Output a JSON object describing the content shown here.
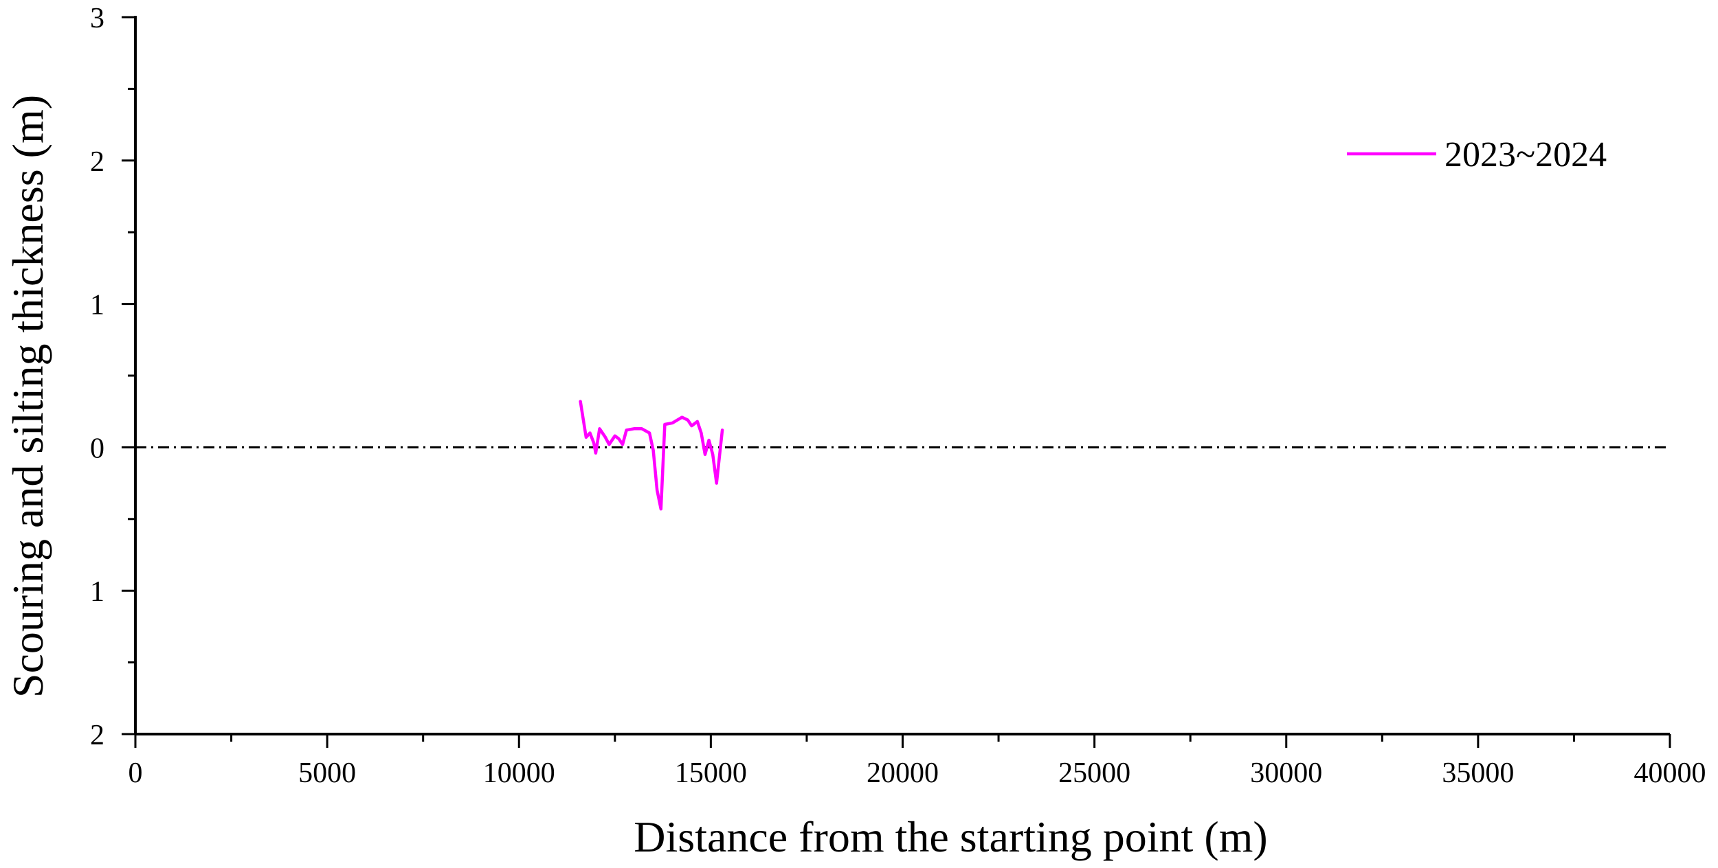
{
  "chart_data": {
    "type": "line",
    "title": "",
    "xlabel": "Distance from the starting point (m)",
    "ylabel": "Scouring and silting thickness (m)",
    "xlim": [
      0,
      40000
    ],
    "ylim": [
      -2,
      3
    ],
    "x_ticks": [
      0,
      5000,
      10000,
      15000,
      20000,
      25000,
      30000,
      35000,
      40000
    ],
    "x_tick_labels": [
      "0",
      "5000",
      "10000",
      "15000",
      "20000",
      "25000",
      "30000",
      "35000",
      "40000"
    ],
    "y_ticks": [
      3,
      2,
      1,
      0,
      -1,
      -2
    ],
    "y_tick_labels": [
      "3",
      "2",
      "1",
      "0",
      "1",
      "2"
    ],
    "grid": false,
    "legend_position": "top-right",
    "reference_line": {
      "y": 0,
      "style": "dash-dot",
      "color": "#000000"
    },
    "series": [
      {
        "name": "2023~2024",
        "color": "#ff00ff",
        "x": [
          11600,
          11750,
          11850,
          11950,
          12000,
          12100,
          12250,
          12350,
          12500,
          12600,
          12700,
          12800,
          13000,
          13200,
          13400,
          13500,
          13600,
          13700,
          13800,
          14000,
          14250,
          14400,
          14500,
          14650,
          14750,
          14850,
          14950,
          15050,
          15150,
          15300
        ],
        "y": [
          0.32,
          0.07,
          0.1,
          0.03,
          -0.04,
          0.13,
          0.07,
          0.02,
          0.08,
          0.06,
          0.02,
          0.12,
          0.13,
          0.13,
          0.1,
          -0.02,
          -0.3,
          -0.43,
          0.16,
          0.17,
          0.21,
          0.19,
          0.15,
          0.18,
          0.1,
          -0.05,
          0.05,
          -0.05,
          -0.25,
          0.12
        ]
      }
    ]
  }
}
